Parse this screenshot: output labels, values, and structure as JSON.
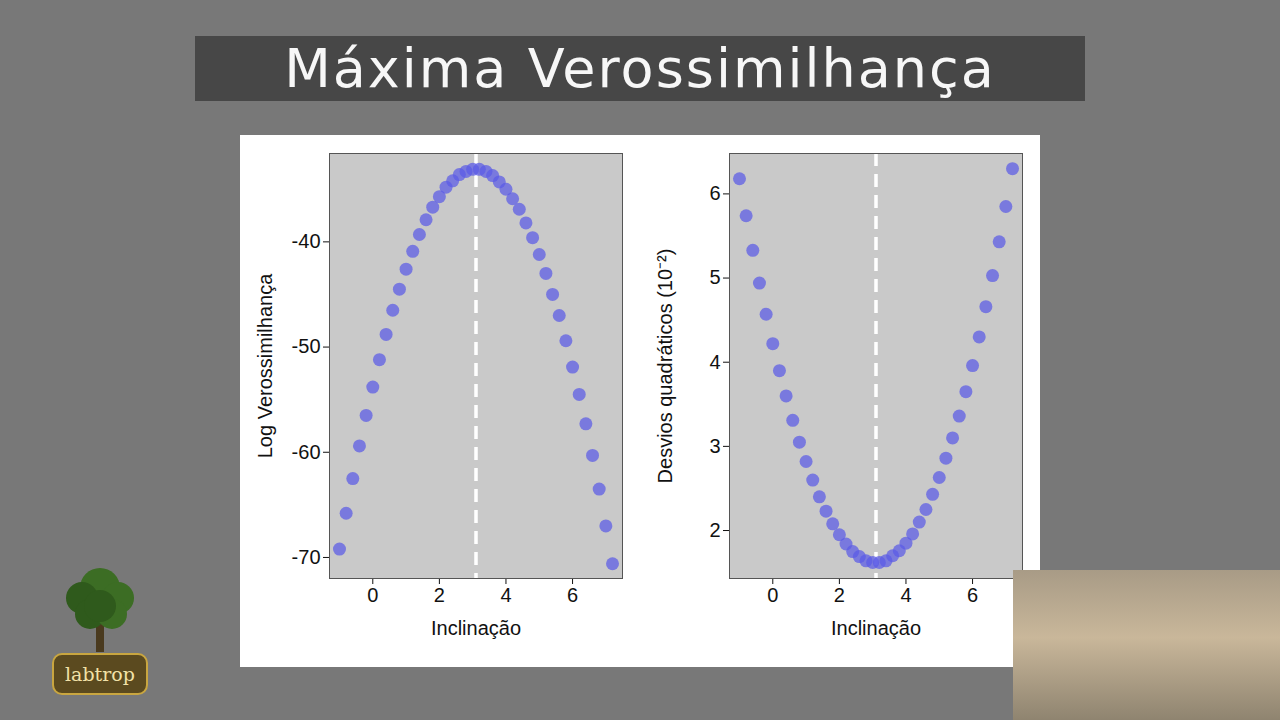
{
  "title": "Máxima Verossimilhança",
  "logo": "labtrop",
  "chart_data": [
    {
      "type": "scatter",
      "xlabel": "Inclinação",
      "ylabel": "Log Verossimilhança",
      "x": [
        -1.0,
        -0.8,
        -0.6,
        -0.4,
        -0.2,
        0.0,
        0.2,
        0.4,
        0.6,
        0.8,
        1.0,
        1.2,
        1.4,
        1.6,
        1.8,
        2.0,
        2.2,
        2.4,
        2.6,
        2.8,
        3.0,
        3.2,
        3.4,
        3.6,
        3.8,
        4.0,
        4.2,
        4.4,
        4.6,
        4.8,
        5.0,
        5.2,
        5.4,
        5.6,
        5.8,
        6.0,
        6.2,
        6.4,
        6.6,
        6.8,
        7.0,
        7.2
      ],
      "values": [
        -69.2,
        -65.8,
        -62.5,
        -59.4,
        -56.5,
        -53.8,
        -51.2,
        -48.8,
        -46.5,
        -44.5,
        -42.6,
        -40.9,
        -39.3,
        -37.9,
        -36.7,
        -35.7,
        -34.8,
        -34.2,
        -33.6,
        -33.3,
        -33.1,
        -33.1,
        -33.3,
        -33.7,
        -34.3,
        -35.0,
        -35.9,
        -36.9,
        -38.2,
        -39.6,
        -41.2,
        -43.0,
        -45.0,
        -47.0,
        -49.4,
        -51.9,
        -54.5,
        -57.3,
        -60.3,
        -63.5,
        -67.0,
        -70.6
      ],
      "color": "#5a5ae6",
      "marker": "circle",
      "vline": 3.1,
      "xlim": [
        -1.3,
        7.5
      ],
      "ylim": [
        -72,
        -31.6
      ],
      "xticks": [
        0,
        2,
        4,
        6
      ],
      "yticks": [
        -70,
        -60,
        -50,
        -40
      ],
      "grid": false
    },
    {
      "type": "scatter",
      "xlabel": "Inclinação",
      "ylabel": "Desvios quadráticos (10⁻²)",
      "x": [
        -1.0,
        -0.8,
        -0.6,
        -0.4,
        -0.2,
        0.0,
        0.2,
        0.4,
        0.6,
        0.8,
        1.0,
        1.2,
        1.4,
        1.6,
        1.8,
        2.0,
        2.2,
        2.4,
        2.6,
        2.8,
        3.0,
        3.2,
        3.4,
        3.6,
        3.8,
        4.0,
        4.2,
        4.4,
        4.6,
        4.8,
        5.0,
        5.2,
        5.4,
        5.6,
        5.8,
        6.0,
        6.2,
        6.4,
        6.6,
        6.8,
        7.0,
        7.2
      ],
      "values": [
        6.18,
        5.74,
        5.33,
        4.94,
        4.57,
        4.22,
        3.9,
        3.6,
        3.31,
        3.05,
        2.82,
        2.6,
        2.4,
        2.23,
        2.08,
        1.95,
        1.84,
        1.75,
        1.69,
        1.64,
        1.62,
        1.62,
        1.64,
        1.7,
        1.76,
        1.85,
        1.96,
        2.1,
        2.25,
        2.43,
        2.63,
        2.86,
        3.1,
        3.36,
        3.65,
        3.96,
        4.3,
        4.66,
        5.03,
        5.43,
        5.85,
        6.3
      ],
      "color": "#5a5ae6",
      "marker": "circle",
      "vline": 3.1,
      "xlim": [
        -1.3,
        7.5
      ],
      "ylim": [
        1.43,
        6.48
      ],
      "xticks": [
        0,
        2,
        4,
        6
      ],
      "yticks": [
        2,
        3,
        4,
        5,
        6
      ],
      "grid": false
    }
  ]
}
